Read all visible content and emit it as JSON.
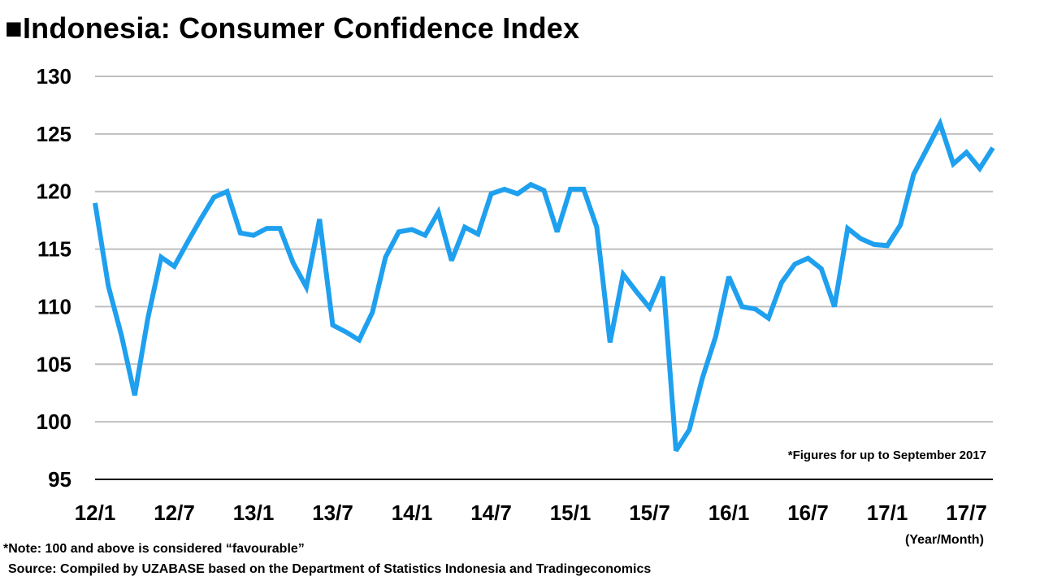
{
  "title": "■Indonesia: Consumer Confidence Index",
  "footnote_in_chart": "*Figures for up to September 2017",
  "x_unit": "(Year/Month)",
  "note": "*Note: 100 and above is considered “favourable”",
  "source": "Source: Compiled by UZABASE based on the Department of Statistics Indonesia and Tradingeconomics",
  "colors": {
    "line": "#1FA0EF",
    "grid": "#BFBFBF",
    "axis": "#000000"
  },
  "chart_data": {
    "type": "line",
    "title": "■Indonesia: Consumer Confidence Index",
    "xlabel": "(Year/Month)",
    "ylabel": "",
    "ylim": [
      95,
      130
    ],
    "yticks": [
      95,
      100,
      105,
      110,
      115,
      120,
      125,
      130
    ],
    "grid": true,
    "x_tick_labels": [
      "12/1",
      "12/7",
      "13/1",
      "13/7",
      "14/1",
      "14/7",
      "15/1",
      "15/7",
      "16/1",
      "16/7",
      "17/1",
      "17/7"
    ],
    "x_range": [
      "2012-01",
      "2017-09"
    ],
    "series": [
      {
        "x": [
          "2012-01",
          "2012-02",
          "2012-03",
          "2012-04",
          "2012-05",
          "2012-06",
          "2012-07",
          "2012-08",
          "2012-09",
          "2012-10",
          "2012-11",
          "2012-12",
          "2013-01",
          "2013-02",
          "2013-03",
          "2013-04",
          "2013-05",
          "2013-06",
          "2013-07",
          "2013-08",
          "2013-09",
          "2013-10",
          "2013-11",
          "2013-12",
          "2014-01",
          "2014-02",
          "2014-03",
          "2014-04",
          "2014-05",
          "2014-06",
          "2014-07",
          "2014-08",
          "2014-09",
          "2014-10",
          "2014-11",
          "2014-12",
          "2015-01",
          "2015-02",
          "2015-03",
          "2015-04",
          "2015-05",
          "2015-06",
          "2015-07",
          "2015-08",
          "2015-09",
          "2015-10",
          "2015-11",
          "2015-12",
          "2016-01",
          "2016-02",
          "2016-03",
          "2016-04",
          "2016-05",
          "2016-06",
          "2016-07",
          "2016-08",
          "2016-09",
          "2016-10",
          "2016-11",
          "2016-12",
          "2017-01",
          "2017-02",
          "2017-03",
          "2017-04",
          "2017-05",
          "2017-06",
          "2017-07",
          "2017-08",
          "2017-09"
        ],
        "values": [
          119.0,
          111.8,
          107.5,
          102.3,
          109.0,
          114.3,
          113.5,
          115.6,
          117.6,
          119.5,
          120.0,
          116.4,
          116.2,
          116.8,
          116.8,
          113.8,
          111.7,
          117.6,
          108.4,
          107.8,
          107.1,
          109.5,
          114.3,
          116.5,
          116.7,
          116.2,
          118.2,
          114.0,
          116.9,
          116.3,
          119.8,
          120.2,
          119.8,
          120.6,
          120.1,
          116.5,
          120.2,
          120.2,
          116.9,
          106.9,
          112.8,
          111.3,
          109.9,
          112.6,
          97.5,
          99.3,
          103.8,
          107.4,
          112.6,
          110.0,
          109.8,
          109.0,
          112.1,
          113.7,
          114.2,
          113.3,
          110.0,
          116.8,
          115.9,
          115.4,
          115.3,
          117.1,
          121.5,
          123.7,
          125.9,
          122.4,
          123.4,
          122.0,
          123.8
        ]
      }
    ]
  }
}
